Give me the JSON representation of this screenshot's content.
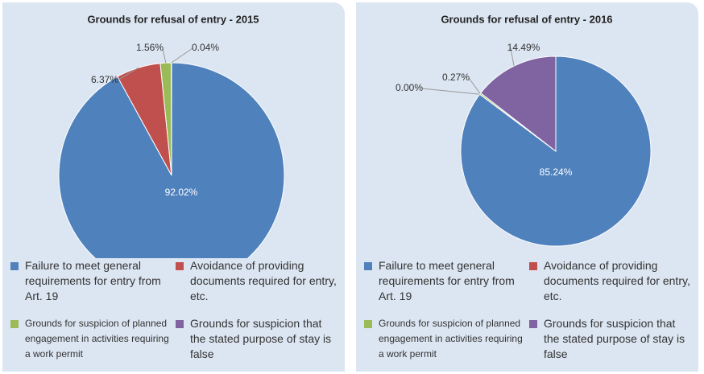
{
  "chart_data": [
    {
      "type": "pie",
      "title": "Grounds for refusal of entry - 2015",
      "categories": [
        "Failure to meet general requirements for entry from Art. 19",
        "Avoidance of providing documents required for entry, etc.",
        "Grounds for suspicion of planned engagement in activities requiring a work permit",
        "Grounds for suspicion that the stated purpose of stay is false"
      ],
      "values": [
        92.02,
        6.37,
        1.56,
        0.04
      ],
      "value_labels": [
        "92.02%",
        "6.37%",
        "1.56%",
        "0.04%"
      ],
      "colors": [
        "#4f81bd",
        "#c0504d",
        "#9bbb59",
        "#8064a2"
      ]
    },
    {
      "type": "pie",
      "title": "Grounds for refusal of entry - 2016",
      "categories": [
        "Failure to meet general requirements for entry from Art. 19",
        "Avoidance of providing documents required for entry, etc.",
        "Grounds for suspicion of planned engagement in activities requiring a work permit",
        "Grounds for suspicion that the stated purpose of stay is false"
      ],
      "values": [
        85.24,
        0.0,
        0.27,
        14.49
      ],
      "value_labels": [
        "85.24%",
        "0.00%",
        "0.27%",
        "14.49%"
      ],
      "colors": [
        "#4f81bd",
        "#c0504d",
        "#9bbb59",
        "#8064a2"
      ]
    }
  ]
}
